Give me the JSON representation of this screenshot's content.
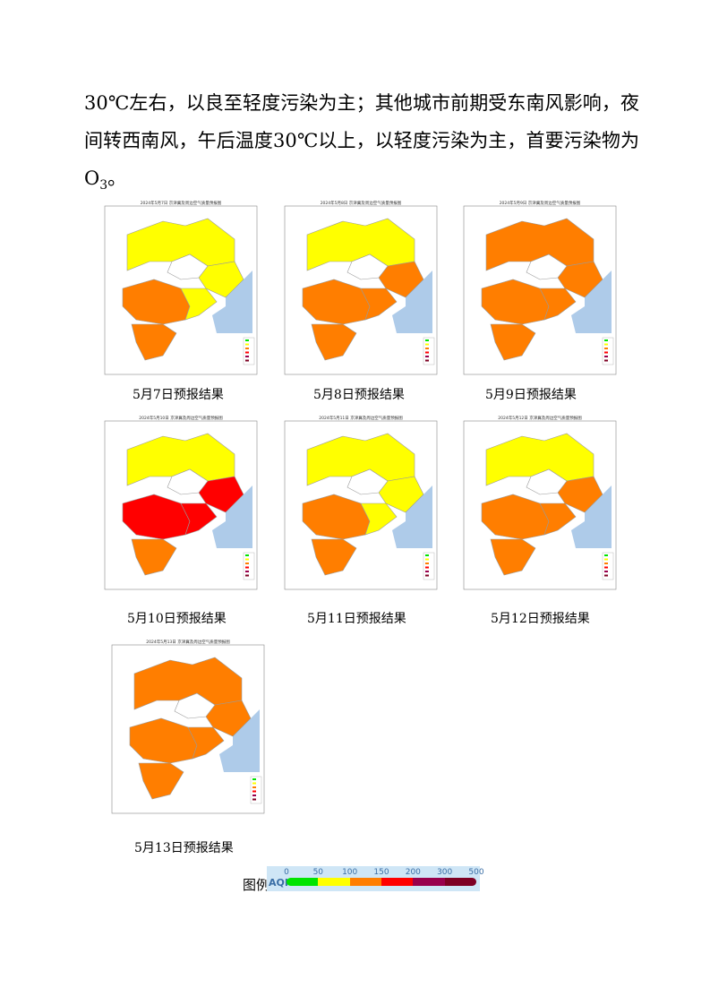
{
  "paragraph": {
    "lines": [
      "30℃左右，以良至轻度污染为主；其他城市前期受东南风影响，夜",
      "间转西南风，午后温度30℃以上，以轻度污染为主，首要污染物为",
      "O",
      "3",
      "。"
    ]
  },
  "colors": {
    "good": "#ffff00",
    "light": "#ff7e00",
    "moderate": "#ff0000",
    "sea": "#aecbe9",
    "unknown": "#ffffff"
  },
  "maps": [
    {
      "caption": "5月7日预报结果",
      "title": "2024年5月7日 京津冀及周边空气质量预报图",
      "scheme": "d7"
    },
    {
      "caption": "5月8日预报结果",
      "title": "2024年5月8日 京津冀及周边空气质量预报图",
      "scheme": "d8"
    },
    {
      "caption": "5月9日预报结果",
      "title": "2024年5月9日 京津冀及周边空气质量预报图",
      "scheme": "d9"
    },
    {
      "caption": "5月10日预报结果",
      "title": "2024年5月10日 京津冀及周边空气质量预报图",
      "scheme": "d10"
    },
    {
      "caption": "5月11日预报结果",
      "title": "2024年5月11日 京津冀及周边空气质量预报图",
      "scheme": "d11"
    },
    {
      "caption": "5月12日预报结果",
      "title": "2024年5月12日 京津冀及周边空气质量预报图",
      "scheme": "d12"
    },
    {
      "caption": "5月13日预报结果",
      "title": "2024年5月13日 京津冀及周边空气质量预报图",
      "scheme": "d13"
    }
  ],
  "legend": {
    "label": "图例",
    "aqi": "AQI",
    "ticks": [
      "0",
      "50",
      "100",
      "150",
      "200",
      "300",
      "500"
    ],
    "colors": [
      "#00e400",
      "#ffff00",
      "#ff7e00",
      "#ff0000",
      "#99004c",
      "#7e0023"
    ]
  }
}
